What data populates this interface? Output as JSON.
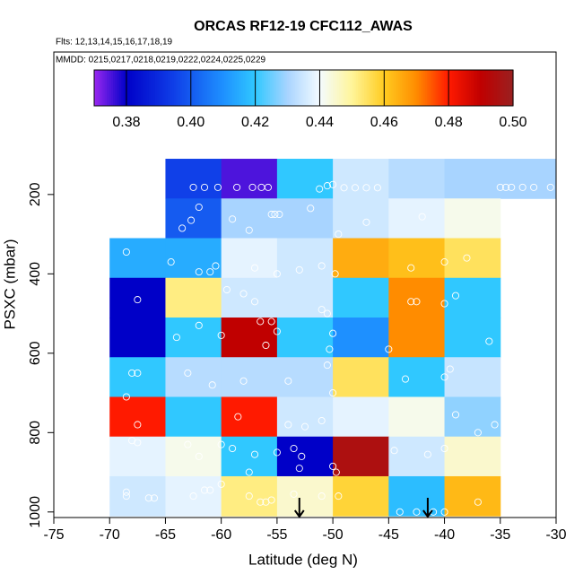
{
  "chart_data": {
    "type": "heatmap",
    "title": "ORCAS RF12-19 CFC112_AWAS",
    "subtitles": [
      "Flts: 12,13,14,15,16,17,18,19",
      "MMDD: 0215,0217,0218,0219,0222,0224,0225,0229"
    ],
    "x_label": "Latitude (deg N)",
    "y_label": "PSXC (mbar)",
    "xlim": [
      -75,
      -30
    ],
    "xticks": [
      -75,
      -70,
      -65,
      -60,
      -55,
      -50,
      -45,
      -40,
      -35,
      -30
    ],
    "ylim": [
      1014,
      -159
    ],
    "yticks": [
      200,
      400,
      600,
      800,
      1000
    ],
    "x_bins": [
      -70,
      -65,
      -60,
      -55,
      -50,
      -45,
      -40,
      -35,
      -30
    ],
    "y_bins": [
      110,
      210,
      310,
      410,
      510,
      610,
      710,
      810,
      910,
      1010
    ],
    "values": [
      [
        null,
        0.395,
        0.375,
        0.42,
        0.435,
        0.432,
        0.43,
        0.43
      ],
      [
        null,
        0.4,
        0.43,
        0.43,
        0.435,
        0.438,
        0.442,
        null
      ],
      [
        0.415,
        0.415,
        0.438,
        0.435,
        0.465,
        0.462,
        0.455,
        null
      ],
      [
        0.38,
        0.452,
        0.435,
        0.435,
        0.42,
        0.47,
        0.42,
        null
      ],
      [
        0.38,
        0.42,
        0.49,
        0.42,
        0.41,
        0.47,
        0.42,
        null
      ],
      [
        0.42,
        0.432,
        0.432,
        0.432,
        0.455,
        0.42,
        0.434,
        null
      ],
      [
        0.48,
        0.42,
        0.48,
        0.435,
        0.438,
        0.442,
        0.428,
        null
      ],
      [
        0.438,
        0.442,
        0.42,
        0.38,
        0.495,
        0.435,
        0.445,
        null
      ],
      [
        0.435,
        0.438,
        0.452,
        0.445,
        0.458,
        0.418,
        0.463,
        null
      ]
    ],
    "colorbar_lim": [
      0.37,
      0.5
    ],
    "colorbar_ticks": [
      0.38,
      {
        "value": 0.4,
        "label": "0.40"
      },
      0.42,
      0.44,
      0.46,
      0.48,
      {
        "value": 0.5,
        "label": "0.50"
      }
    ],
    "colormap": [
      [
        0.37,
        "#9a28f0"
      ],
      [
        0.38,
        "#0000c8"
      ],
      [
        0.395,
        "#1040e8"
      ],
      [
        0.41,
        "#1e90ff"
      ],
      [
        0.42,
        "#30c8ff"
      ],
      [
        0.43,
        "#a8d4ff"
      ],
      [
        0.44,
        "#f4fbff"
      ],
      [
        0.45,
        "#fff59a"
      ],
      [
        0.46,
        "#ffcc20"
      ],
      [
        0.47,
        "#ff8c00"
      ],
      [
        0.48,
        "#ff1a00"
      ],
      [
        0.49,
        "#c00000"
      ],
      [
        0.5,
        "#9a2020"
      ]
    ],
    "points": {
      "color": "#ffffff",
      "x": [
        -62.5,
        -61.5,
        -60.3,
        -58.6,
        -57.2,
        -56.4,
        -55.8,
        -51.2,
        -50.5,
        -50,
        -49,
        -48,
        -47,
        -46,
        -35,
        -34.5,
        -34,
        -33,
        -32,
        -30.5,
        -62,
        -62.7,
        -63.5,
        -55.5,
        -55.2,
        -54.8,
        -59,
        -57.5,
        -49.5,
        -47,
        -42,
        -52,
        -68.5,
        -64.5,
        -62,
        -60.5,
        -61,
        -57,
        -55,
        -53,
        -51,
        -49.8,
        -43,
        -40,
        -38,
        -59.5,
        -58,
        -57,
        -56.5,
        -55.5,
        -51,
        -50.5,
        -43,
        -42.5,
        -40,
        -39,
        -67.5,
        -62,
        -64,
        -60,
        -55,
        -50,
        -50.3,
        -56,
        -45,
        -36,
        -67.5,
        -68,
        -60.8,
        -63,
        -58,
        -54,
        -50.5,
        -50,
        -43.5,
        -40,
        -39.5,
        -68.5,
        -67.5,
        -58.5,
        -54,
        -52.5,
        -51,
        -37,
        -35.5,
        -39,
        -68,
        -67.5,
        -63,
        -62,
        -60,
        -59,
        -57,
        -55,
        -53.5,
        -53,
        -57.5,
        -52.8,
        -50,
        -49.7,
        -44.5,
        -41.5,
        -40,
        -68.5,
        -68.5,
        -66.5,
        -66,
        -62.5,
        -61.5,
        -61,
        -60,
        -57.5,
        -56.5,
        -56,
        -55.5,
        -53.5,
        -51,
        -49.5,
        -44,
        -42.5,
        -41,
        -40,
        -37
      ],
      "y": [
        182,
        182,
        182,
        182,
        182,
        182,
        182,
        186,
        178,
        175,
        183,
        183,
        183,
        183,
        182,
        182,
        182,
        182,
        182,
        182,
        232,
        265,
        285,
        250,
        250,
        250,
        262,
        290,
        300,
        270,
        256,
        235,
        345,
        370,
        395,
        380,
        395,
        385,
        400,
        390,
        380,
        400,
        385,
        370,
        360,
        440,
        450,
        470,
        520,
        520,
        490,
        500,
        470,
        470,
        475,
        455,
        465,
        530,
        560,
        555,
        545,
        550,
        590,
        580,
        590,
        570,
        650,
        650,
        680,
        650,
        670,
        670,
        630,
        700,
        665,
        660,
        640,
        710,
        780,
        760,
        780,
        785,
        770,
        800,
        780,
        755,
        820,
        825,
        830,
        860,
        830,
        840,
        855,
        850,
        840,
        890,
        900,
        860,
        885,
        900,
        845,
        855,
        840,
        960,
        950,
        965,
        965,
        960,
        945,
        945,
        930,
        960,
        975,
        975,
        970,
        955,
        960,
        960,
        1000,
        1000,
        1000,
        1000,
        975
      ]
    },
    "arrows_x": [
      -53,
      -41.5
    ]
  }
}
